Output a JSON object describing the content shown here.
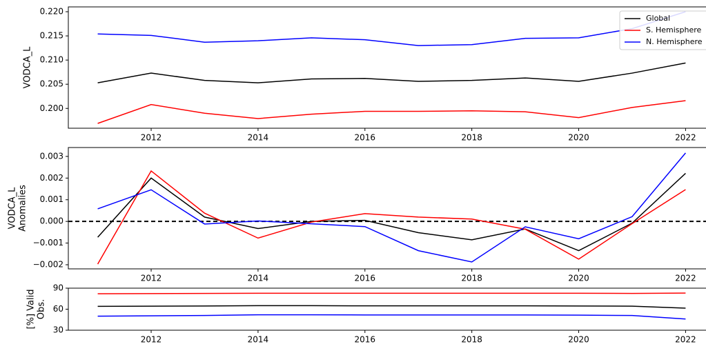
{
  "chart_data": [
    {
      "type": "line",
      "ylabel": [
        "VODCA_L"
      ],
      "x": [
        2011,
        2012,
        2013,
        2014,
        2015,
        2016,
        2017,
        2018,
        2019,
        2020,
        2021,
        2022
      ],
      "xlim": [
        2010.45,
        2022.55
      ],
      "xticks": [
        2012,
        2014,
        2016,
        2018,
        2020,
        2022
      ],
      "ylim": [
        0.1959,
        0.221
      ],
      "yticks": [
        {
          "value": 0.2,
          "label": "0.200"
        },
        {
          "value": 0.205,
          "label": "0.205"
        },
        {
          "value": 0.21,
          "label": "0.210"
        },
        {
          "value": 0.215,
          "label": "0.215"
        },
        {
          "value": 0.22,
          "label": "0.220"
        }
      ],
      "legend": "upper right",
      "series": [
        {
          "name": "Global",
          "color": "#000000",
          "values": [
            0.2053,
            0.2073,
            0.2058,
            0.2053,
            0.2061,
            0.2062,
            0.2056,
            0.2058,
            0.2063,
            0.2056,
            0.2073,
            0.2094
          ]
        },
        {
          "name": "S. Hemisphere",
          "color": "#ff0000",
          "values": [
            0.1969,
            0.2008,
            0.199,
            0.1979,
            0.1988,
            0.1994,
            0.1994,
            0.1995,
            0.1993,
            0.1981,
            0.2002,
            0.2016
          ]
        },
        {
          "name": "N. Hemisphere",
          "color": "#0000ff",
          "values": [
            0.2154,
            0.2151,
            0.2137,
            0.214,
            0.2146,
            0.2142,
            0.213,
            0.2132,
            0.2145,
            0.2146,
            0.2165,
            0.22
          ]
        }
      ]
    },
    {
      "type": "line",
      "ylabel": [
        "VODCA_L",
        "Anomalies"
      ],
      "x": [
        2011,
        2012,
        2013,
        2014,
        2015,
        2016,
        2017,
        2018,
        2019,
        2020,
        2021,
        2022
      ],
      "xlim": [
        2010.45,
        2022.55
      ],
      "xticks": [
        2012,
        2014,
        2016,
        2018,
        2020,
        2022
      ],
      "ylim": [
        -0.00219,
        0.00341
      ],
      "yticks": [
        {
          "value": -0.002,
          "label": "−0.002"
        },
        {
          "value": -0.001,
          "label": "−0.001"
        },
        {
          "value": 0,
          "label": "0.000"
        },
        {
          "value": 0.001,
          "label": "0.001"
        },
        {
          "value": 0.002,
          "label": "0.002"
        },
        {
          "value": 0.003,
          "label": "0.003"
        }
      ],
      "reference_line": 0,
      "series": [
        {
          "color": "#000000",
          "values": [
            -0.00073,
            0.002,
            0.0002,
            -0.00033,
            0.0,
            5e-05,
            -0.00052,
            -0.00085,
            -0.00035,
            -0.00135,
            -8e-05,
            0.00222
          ]
        },
        {
          "color": "#ff0000",
          "values": [
            -0.00197,
            0.00233,
            0.00038,
            -0.00077,
            -3e-05,
            0.00036,
            0.0002,
            0.00011,
            -0.00036,
            -0.00174,
            -0.0001,
            0.00147
          ]
        },
        {
          "color": "#0000ff",
          "values": [
            0.00058,
            0.00146,
            -0.00012,
            2e-05,
            -0.00011,
            -0.00024,
            -0.00135,
            -0.00187,
            -0.00025,
            -0.0008,
            0.00022,
            0.00316
          ]
        }
      ]
    },
    {
      "type": "line",
      "ylabel": [
        "[%] Valid",
        "Obs."
      ],
      "x": [
        2011,
        2012,
        2013,
        2014,
        2015,
        2016,
        2017,
        2018,
        2019,
        2020,
        2021,
        2022
      ],
      "xlim": [
        2010.45,
        2022.55
      ],
      "xticks": [
        2012,
        2014,
        2016,
        2018,
        2020,
        2022
      ],
      "ylim": [
        30,
        90
      ],
      "yticks": [
        30,
        60,
        90
      ],
      "series": [
        {
          "color": "#000000",
          "values": [
            64,
            64.3,
            64.5,
            65,
            65,
            64.8,
            64.8,
            64.8,
            64.8,
            64.5,
            64.3,
            61.5
          ]
        },
        {
          "color": "#ff0000",
          "values": [
            82,
            82.3,
            82.5,
            82.7,
            82.8,
            82.8,
            82.8,
            82.8,
            82.8,
            82.8,
            82.5,
            83
          ]
        },
        {
          "color": "#0000ff",
          "values": [
            50,
            50.5,
            51,
            52,
            52,
            51.8,
            51.8,
            51.8,
            51.8,
            51.5,
            51,
            46
          ]
        }
      ]
    }
  ]
}
